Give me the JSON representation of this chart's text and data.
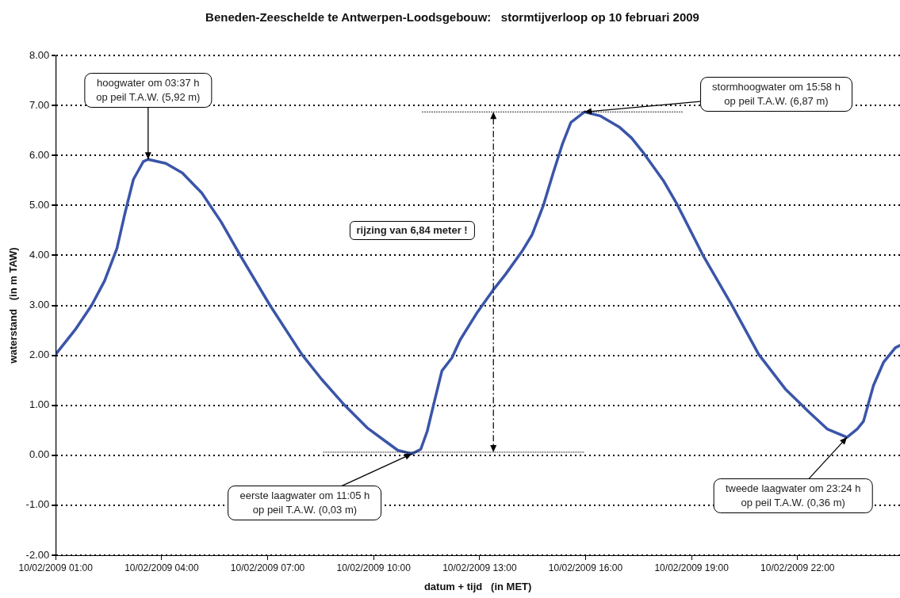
{
  "chart_data": {
    "type": "line",
    "title": "Beneden-Zeeschelde te Antwerpen-Loodsgebouw:   stormtijverloop op 10 februari 2009",
    "xlabel": "datum + tijd   (in MET)",
    "ylabel": "waterstand   (in m TAW)",
    "x": [
      "2009-02-10T01:00",
      "2009-02-10T01:33",
      "2009-02-10T02:01",
      "2009-02-10T02:23",
      "2009-02-10T02:44",
      "2009-02-10T02:58",
      "2009-02-10T03:12",
      "2009-02-10T03:29",
      "2009-02-10T03:37",
      "2009-02-10T04:07",
      "2009-02-10T04:35",
      "2009-02-10T05:08",
      "2009-02-10T05:41",
      "2009-02-10T06:14",
      "2009-02-10T07:04",
      "2009-02-10T07:58",
      "2009-02-10T08:31",
      "2009-02-10T09:10",
      "2009-02-10T09:49",
      "2009-02-10T10:19",
      "2009-02-10T10:41",
      "2009-02-10T11:05",
      "2009-02-10T11:20",
      "2009-02-10T11:31",
      "2009-02-10T11:43",
      "2009-02-10T11:56",
      "2009-02-10T12:13",
      "2009-02-10T12:27",
      "2009-02-10T12:55",
      "2009-02-10T13:22",
      "2009-02-10T13:44",
      "2009-02-10T14:12",
      "2009-02-10T14:29",
      "2009-02-10T14:48",
      "2009-02-10T15:05",
      "2009-02-10T15:21",
      "2009-02-10T15:35",
      "2009-02-10T15:58",
      "2009-02-10T16:25",
      "2009-02-10T16:58",
      "2009-02-10T17:18",
      "2009-02-10T17:39",
      "2009-02-10T18:13",
      "2009-02-10T18:35",
      "2009-02-10T19:19",
      "2009-02-10T20:10",
      "2009-02-10T20:54",
      "2009-02-10T21:39",
      "2009-02-10T22:18",
      "2009-02-10T22:51",
      "2009-02-10T23:24",
      "2009-02-10T23:41",
      "2009-02-10T23:52",
      "2009-02-11T00:09",
      "2009-02-11T00:26",
      "2009-02-11T00:46",
      "2009-02-11T00:54"
    ],
    "series": [
      {
        "color": "#3a55a8",
        "values": [
          2.02,
          2.51,
          3.0,
          3.49,
          4.14,
          4.86,
          5.52,
          5.88,
          5.92,
          5.84,
          5.65,
          5.25,
          4.67,
          3.99,
          3.0,
          2.02,
          1.53,
          1.01,
          0.55,
          0.29,
          0.1,
          0.03,
          0.12,
          0.48,
          1.07,
          1.69,
          1.95,
          2.31,
          2.84,
          3.29,
          3.62,
          4.08,
          4.41,
          4.99,
          5.65,
          6.24,
          6.66,
          6.87,
          6.79,
          6.56,
          6.35,
          6.04,
          5.48,
          5.03,
          4.01,
          2.97,
          2.02,
          1.33,
          0.88,
          0.52,
          0.36,
          0.52,
          0.68,
          1.4,
          1.86,
          2.15,
          2.2
        ]
      }
    ],
    "xlim": [
      "2009-02-10T01:00",
      "2009-02-11T00:54"
    ],
    "ylim": [
      -2,
      8
    ],
    "xticks": [
      {
        "value": "2009-02-10T01:00",
        "label": "10/02/2009 01:00"
      },
      {
        "value": "2009-02-10T04:00",
        "label": "10/02/2009 04:00"
      },
      {
        "value": "2009-02-10T07:00",
        "label": "10/02/2009 07:00"
      },
      {
        "value": "2009-02-10T10:00",
        "label": "10/02/2009 10:00"
      },
      {
        "value": "2009-02-10T13:00",
        "label": "10/02/2009 13:00"
      },
      {
        "value": "2009-02-10T16:00",
        "label": "10/02/2009 16:00"
      },
      {
        "value": "2009-02-10T19:00",
        "label": "10/02/2009 19:00"
      },
      {
        "value": "2009-02-10T22:00",
        "label": "10/02/2009 22:00"
      }
    ],
    "yticks": [
      {
        "value": -2,
        "label": "-2.00"
      },
      {
        "value": -1,
        "label": "-1.00"
      },
      {
        "value": 0,
        "label": "0.00"
      },
      {
        "value": 1,
        "label": "1.00"
      },
      {
        "value": 2,
        "label": "2.00"
      },
      {
        "value": 3,
        "label": "3.00"
      },
      {
        "value": 4,
        "label": "4.00"
      },
      {
        "value": 5,
        "label": "5.00"
      },
      {
        "value": 6,
        "label": "6.00"
      },
      {
        "value": 7,
        "label": "7.00"
      },
      {
        "value": 8,
        "label": "8.00"
      }
    ],
    "grid": "y",
    "marker": "none",
    "line_style": "solid",
    "annotations": [
      {
        "text": "hoogwater om 03:37 h\nop peil T.A.W. (5,92 m)",
        "x": "2009-02-10T03:37",
        "y": 5.92
      },
      {
        "text": "eerste laagwater om 11:05 h\nop peil T.A.W. (0,03 m)",
        "x": "2009-02-10T11:05",
        "y": 0.03
      },
      {
        "text": "stormhoogwater om 15:58 h\nop peil T.A.W. (6,87 m)",
        "x": "2009-02-10T15:58",
        "y": 6.87
      },
      {
        "text": "tweede laagwater om 23:24 h\nop peil T.A.W. (0,36 m)",
        "x": "2009-02-10T23:24",
        "y": 0.36
      },
      "rijzing van 6,84 meter !"
    ]
  }
}
